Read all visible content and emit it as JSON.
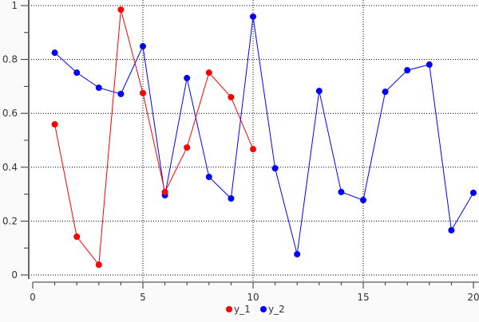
{
  "chart_data": {
    "type": "line",
    "title": "",
    "xlabel": "",
    "ylabel": "",
    "xlim": [
      0,
      20
    ],
    "ylim": [
      0,
      1
    ],
    "x_ticks": [
      "0",
      "5",
      "10",
      "15",
      "20"
    ],
    "y_ticks": [
      "0",
      "0.2",
      "0.4",
      "0.6",
      "0.8",
      "1"
    ],
    "grid": true,
    "legend": "bottom-center",
    "series": [
      {
        "name": "y_1",
        "color": "#ff0000",
        "x": [
          1,
          2,
          3,
          4,
          5,
          6,
          7,
          8,
          9,
          10
        ],
        "values": [
          0.559,
          0.142,
          0.038,
          0.985,
          0.675,
          0.308,
          0.473,
          0.751,
          0.66,
          0.467
        ]
      },
      {
        "name": "y_2",
        "color": "#0000ff",
        "x": [
          1,
          2,
          3,
          4,
          5,
          6,
          7,
          8,
          9,
          10,
          11,
          12,
          13,
          14,
          15,
          16,
          17,
          18,
          19,
          20
        ],
        "values": [
          0.825,
          0.751,
          0.695,
          0.672,
          0.849,
          0.296,
          0.731,
          0.364,
          0.284,
          0.959,
          0.396,
          0.077,
          0.683,
          0.308,
          0.278,
          0.68,
          0.76,
          0.781,
          0.166,
          0.305
        ]
      }
    ]
  }
}
